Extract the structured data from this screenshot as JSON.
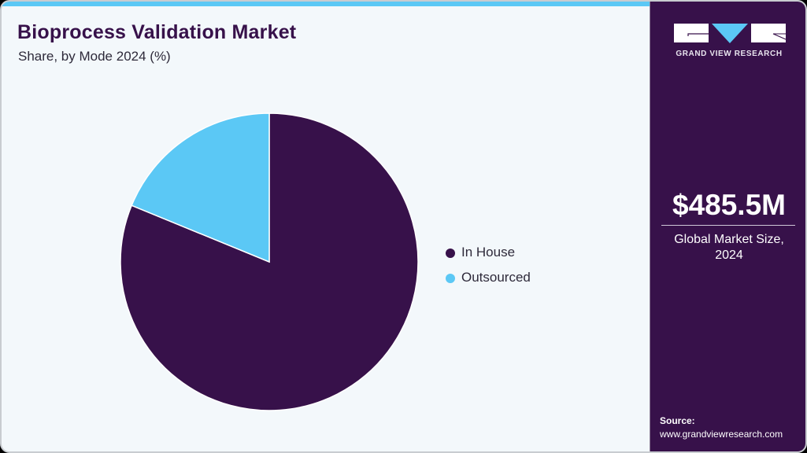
{
  "header": {
    "title": "Bioprocess Validation Market",
    "subtitle": "Share, by Mode 2024 (%)"
  },
  "colors": {
    "accent_strip": "#5bc8f5",
    "brand_purple": "#37114a",
    "in_house": "#37114a",
    "outsourced": "#5bc8f5",
    "background": "#f3f8fb"
  },
  "legend": {
    "items": [
      {
        "label": "In House",
        "color": "#37114a"
      },
      {
        "label": "Outsourced",
        "color": "#5bc8f5"
      }
    ]
  },
  "side_panel": {
    "logo_text": "GRAND VIEW RESEARCH",
    "market_value": "$485.5M",
    "market_label_line1": "Global Market Size,",
    "market_label_line2": "2024",
    "source_label": "Source:",
    "source_url": "www.grandviewresearch.com"
  },
  "chart_data": {
    "type": "pie",
    "title": "Bioprocess Validation Market",
    "subtitle": "Share, by Mode 2024 (%)",
    "categories": [
      "In House",
      "Outsourced"
    ],
    "values": [
      81.2,
      18.8
    ],
    "colors": [
      "#37114a",
      "#5bc8f5"
    ],
    "start_angle_deg": 0,
    "direction": "clockwise from 12 o'clock",
    "legend_position": "right",
    "data_labels": false
  }
}
